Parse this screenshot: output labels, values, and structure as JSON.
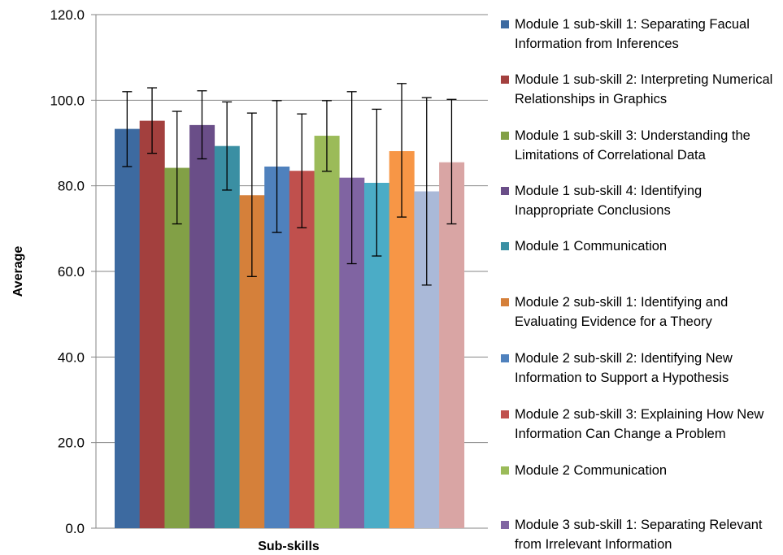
{
  "chart_data": {
    "type": "bar",
    "title": "",
    "xlabel": "Sub-skills",
    "ylabel": "Average",
    "ylim": [
      0,
      120
    ],
    "yticks": [
      "0.0",
      "20.0",
      "40.0",
      "60.0",
      "80.0",
      "100.0",
      "120.0"
    ],
    "grid": true,
    "legend_position": "right",
    "series": [
      {
        "name": "Module 1 sub-skill 1: Separating Facual Information from Inferences",
        "value": 93.3,
        "error_low": 84.5,
        "error_high": 102.0,
        "color": "#3d6aa0"
      },
      {
        "name": "Module 1 sub-skill 2: Interpreting Numerical Relationships in Graphics",
        "value": 95.2,
        "error_low": 87.6,
        "error_high": 102.9,
        "color": "#a3403e"
      },
      {
        "name": "Module 1 sub-skill 3: Understanding the Limitations of Correlational Data",
        "value": 84.2,
        "error_low": 71.1,
        "error_high": 97.4,
        "color": "#82a046"
      },
      {
        "name": "Module 1 sub-skill 4: Identifying Inappropriate Conclusions",
        "value": 94.2,
        "error_low": 86.3,
        "error_high": 102.2,
        "color": "#6a4e88"
      },
      {
        "name": "Module 1 Communication",
        "value": 89.3,
        "error_low": 79.0,
        "error_high": 99.6,
        "color": "#3a8fa3"
      },
      {
        "name": "Module 2 sub-skill 1: Identifying and Evaluating Evidence for a Theory",
        "value": 77.8,
        "error_low": 58.8,
        "error_high": 97.0,
        "color": "#d5803a"
      },
      {
        "name": "Module 2 sub-skill 2: Identifying New Information to Support a Hypothesis",
        "value": 84.5,
        "error_low": 69.1,
        "error_high": 99.9,
        "color": "#4f81bd"
      },
      {
        "name": "Module 2 sub-skill 3: Explaining How New Information Can Change a Problem",
        "value": 83.5,
        "error_low": 70.2,
        "error_high": 96.8,
        "color": "#c0504d"
      },
      {
        "name": "Module 2 Communication",
        "value": 91.7,
        "error_low": 83.4,
        "error_high": 99.9,
        "color": "#9bbb59"
      },
      {
        "name": "Module 3 sub-skill 1: Separating Relevant from Irrelevant Information",
        "value": 81.9,
        "error_low": 61.8,
        "error_high": 102.0,
        "color": "#8064a2"
      },
      {
        "name": "",
        "value": 80.7,
        "error_low": 63.6,
        "error_high": 97.9,
        "color": "#4bacc6"
      },
      {
        "name": "",
        "value": 88.1,
        "error_low": 72.7,
        "error_high": 103.9,
        "color": "#f79646"
      },
      {
        "name": "",
        "value": 78.7,
        "error_low": 56.8,
        "error_high": 100.6,
        "color": "#aab9d8"
      },
      {
        "name": "",
        "value": 85.5,
        "error_low": 71.1,
        "error_high": 100.2,
        "color": "#d9a5a4"
      }
    ]
  }
}
